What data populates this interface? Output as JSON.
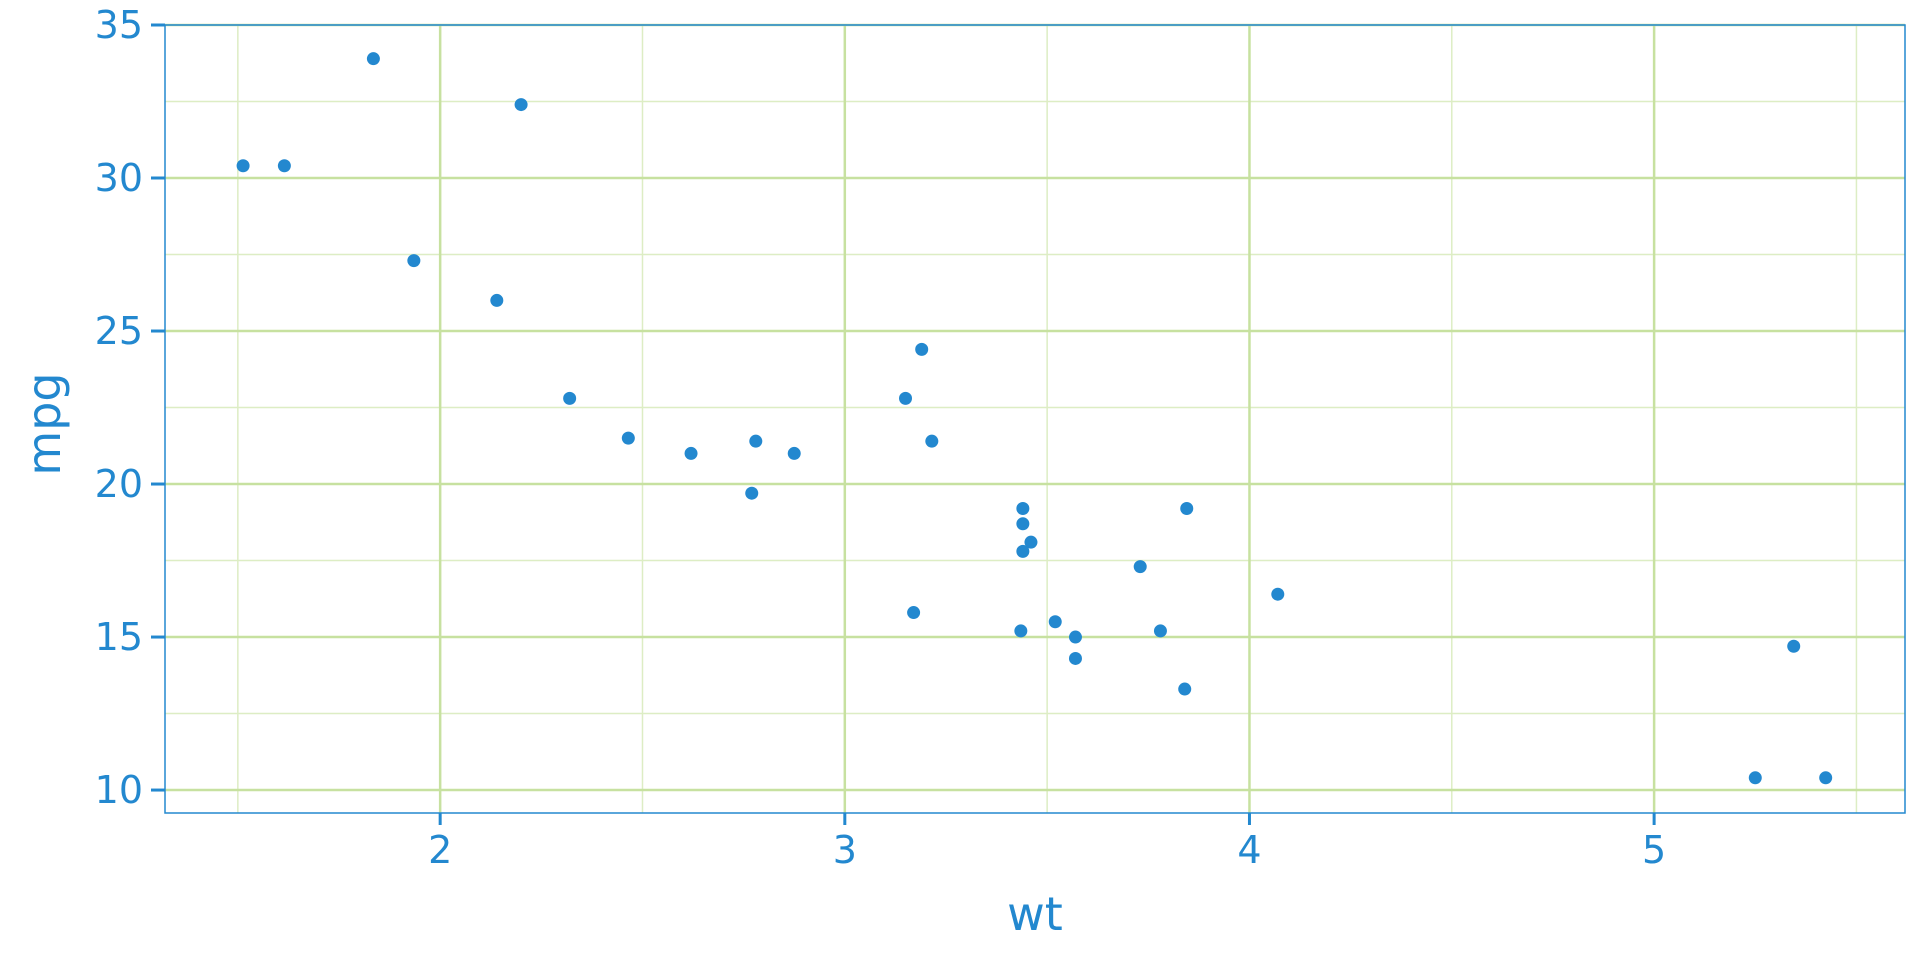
{
  "chart_data": {
    "type": "scatter",
    "title": "",
    "xlabel": "wt",
    "ylabel": "mpg",
    "xlim": [
      1.32,
      5.62
    ],
    "ylim": [
      9.25,
      35.0
    ],
    "x_ticks": [
      2,
      3,
      4,
      5
    ],
    "x_tick_labels": [
      "2",
      "3",
      "4",
      "5"
    ],
    "y_ticks": [
      10,
      15,
      20,
      25,
      30,
      35
    ],
    "y_tick_labels": [
      "10",
      "15",
      "20",
      "25",
      "30",
      "35"
    ],
    "x_minor_gridlines": [
      1.5,
      2.5,
      3.5,
      4.5,
      5.5
    ],
    "y_minor_gridlines": [
      12.5,
      17.5,
      22.5,
      27.5,
      32.5
    ],
    "grid": true,
    "legend": "none",
    "colors": {
      "points": "#2388CF",
      "text": "#2388CF",
      "axis": "#2388CF",
      "grid_major": "#C7E1A0",
      "grid_minor": "#DDEDC4",
      "background": "#FFFFFF"
    },
    "series": [
      {
        "x": [
          2.62,
          2.875,
          2.32,
          3.215,
          3.44,
          3.46,
          3.57,
          3.19,
          3.15,
          3.44,
          3.44,
          4.07,
          3.73,
          3.78,
          5.25,
          5.424,
          5.345,
          2.2,
          1.615,
          1.835,
          2.465,
          3.52,
          3.435,
          3.84,
          3.845,
          1.935,
          2.14,
          1.513,
          3.17,
          2.77,
          3.57,
          2.78
        ],
        "y": [
          21.0,
          21.0,
          22.8,
          21.4,
          18.7,
          18.1,
          14.3,
          24.4,
          22.8,
          19.2,
          17.8,
          16.4,
          17.3,
          15.2,
          10.4,
          10.4,
          14.7,
          32.4,
          30.4,
          33.9,
          21.5,
          15.5,
          15.2,
          13.3,
          19.2,
          27.3,
          26.0,
          30.4,
          15.8,
          19.7,
          15.0,
          21.4
        ]
      }
    ]
  }
}
